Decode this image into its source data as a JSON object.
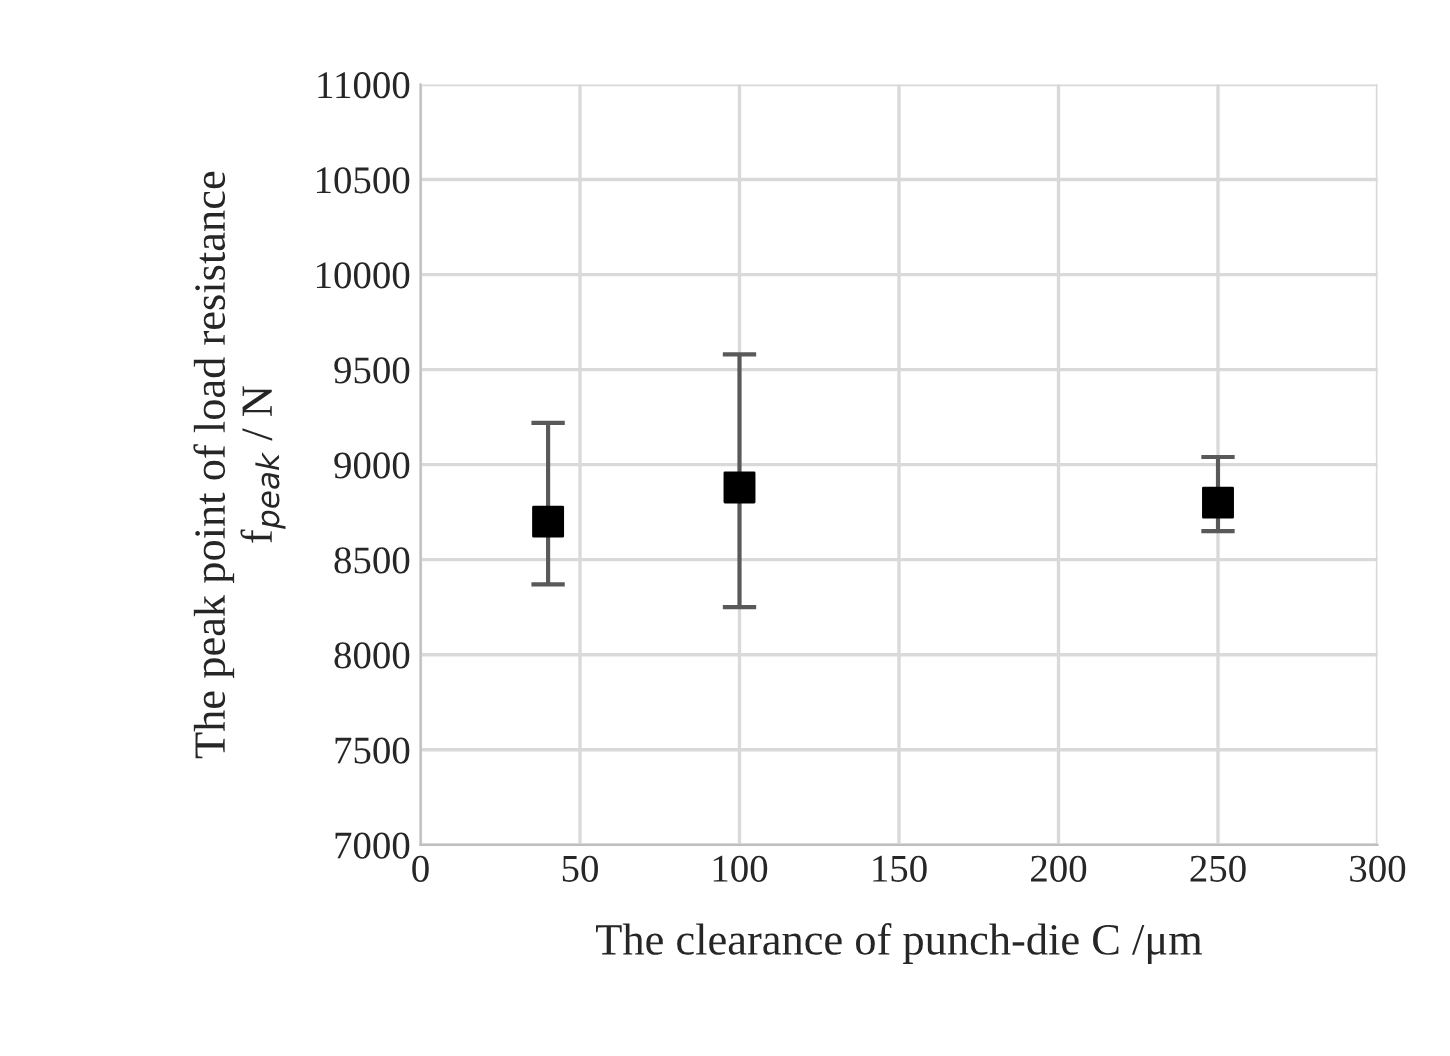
{
  "chart_data": {
    "type": "scatter",
    "xlabel": "The clearance of punch-die C /μm",
    "ylabel": "The peak point of load resistance\nf$_{peak}$ / N",
    "x": [
      40,
      100,
      250
    ],
    "values": [
      8700,
      8880,
      8800
    ],
    "errors": [
      [
        8370,
        9220
      ],
      [
        8250,
        9580
      ],
      [
        8650,
        9040
      ]
    ],
    "color": "#000000",
    "marker": "square",
    "xlim": [
      0,
      300
    ],
    "xticks": [
      0,
      50,
      100,
      150,
      200,
      250,
      300
    ],
    "ylim": [
      7000,
      11000
    ],
    "yticks": [
      7000,
      7500,
      8000,
      8500,
      9000,
      9500,
      10000,
      10500,
      11000
    ],
    "grid": true
  }
}
